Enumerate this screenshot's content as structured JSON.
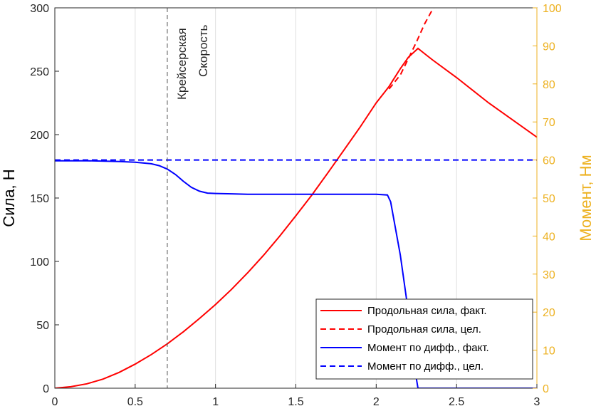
{
  "chart_data": {
    "type": "line",
    "x": [
      0,
      0.1,
      0.2,
      0.3,
      0.4,
      0.5,
      0.6,
      0.7,
      0.8,
      0.9,
      1.0,
      1.1,
      1.2,
      1.3,
      1.4,
      1.5,
      1.6,
      1.7,
      1.8,
      1.9,
      2.0,
      2.08,
      2.1,
      2.15,
      2.2,
      2.26,
      2.3,
      2.35,
      2.5,
      2.7,
      3.0
    ],
    "xlim": [
      0,
      3
    ],
    "xticks": [
      "0",
      "0.5",
      "1",
      "1.5",
      "2",
      "2.5",
      "3"
    ],
    "y_left": {
      "label": "Сила, Н",
      "lim": [
        0,
        300
      ],
      "ticks": [
        "0",
        "50",
        "100",
        "150",
        "200",
        "250",
        "300"
      ]
    },
    "y_right": {
      "label": "Момент, Нм",
      "lim": [
        0,
        100
      ],
      "ticks": [
        "0",
        "10",
        "20",
        "30",
        "40",
        "50",
        "60",
        "70",
        "80",
        "90",
        "100"
      ],
      "color": "#EDB120"
    },
    "series": [
      {
        "name": "Продольная сила, факт.",
        "axis": "left",
        "color": "#FF0000",
        "dash": "solid",
        "values": [
          0,
          1.2,
          3.5,
          7.2,
          12.5,
          19.0,
          26.5,
          35.0,
          44.5,
          55.0,
          66.0,
          78.0,
          91.0,
          105.0,
          120.0,
          136.0,
          152.5,
          170.0,
          188.0,
          206.0,
          225.0,
          238.0,
          242.0,
          252.0,
          261.0,
          268.0,
          264.0,
          259.0,
          245.0,
          225.0,
          198.0
        ]
      },
      {
        "name": "Продольная сила, цел.",
        "axis": "left",
        "color": "#FF0000",
        "dash": "dashed",
        "x": [
          2.08,
          2.15,
          2.2,
          2.25,
          2.3,
          2.36
        ],
        "values": [
          236.0,
          247.0,
          260.0,
          273.0,
          287.0,
          301.0
        ]
      },
      {
        "name": "Момент по дифф., факт.",
        "axis": "right",
        "color": "#0000FF",
        "dash": "solid",
        "x": [
          0,
          0.2,
          0.4,
          0.5,
          0.6,
          0.65,
          0.7,
          0.75,
          0.8,
          0.85,
          0.9,
          0.95,
          1.0,
          1.1,
          1.2,
          1.5,
          1.8,
          2.0,
          2.07,
          2.09,
          2.15,
          2.2,
          2.24,
          2.26,
          3.0
        ],
        "values": [
          59.8,
          59.8,
          59.6,
          59.4,
          59.0,
          58.5,
          57.6,
          56.2,
          54.4,
          52.8,
          51.8,
          51.3,
          51.2,
          51.1,
          51.0,
          51.0,
          51.0,
          51.0,
          50.8,
          49.0,
          35.0,
          20.0,
          5.0,
          0,
          0
        ]
      },
      {
        "name": "Момент по дифф., цел.",
        "axis": "right",
        "color": "#0000FF",
        "dash": "dashed",
        "x": [
          0,
          3
        ],
        "values": [
          60,
          60
        ]
      }
    ],
    "vline": {
      "x": 0.7,
      "label_lines": [
        "Крейсерская",
        "Скорость"
      ]
    },
    "grid": "x-only",
    "legend_position": "bottom-right"
  }
}
